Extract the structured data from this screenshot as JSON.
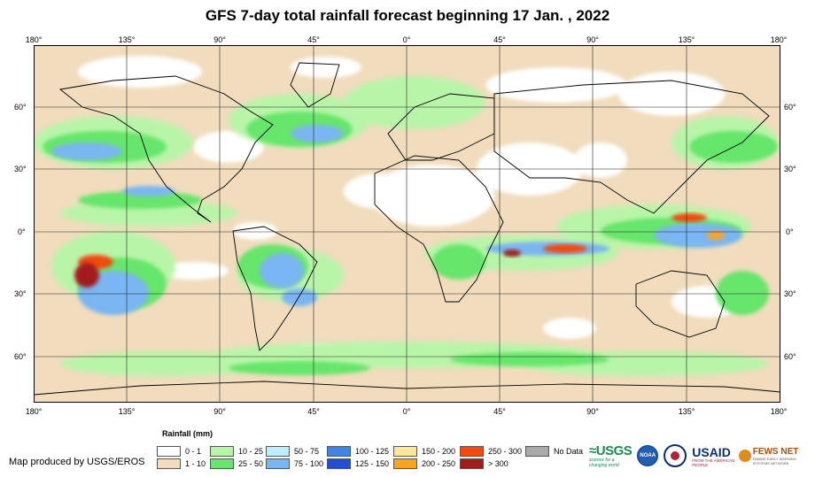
{
  "title": "GFS 7-day total rainfall forecast beginning 17 Jan. , 2022",
  "axes": {
    "longitudes": [
      "180°",
      "135°",
      "90°",
      "45°",
      "0°",
      "45°",
      "90°",
      "135°",
      "180°"
    ],
    "latitudes": [
      "60°",
      "30°",
      "0°",
      "30°",
      "60°"
    ]
  },
  "legend": {
    "title": "Rainfall (mm)",
    "items": [
      {
        "label": "0 - 1",
        "color": "#ffffff"
      },
      {
        "label": "1 - 10",
        "color": "#f1dcbd"
      },
      {
        "label": "10 - 25",
        "color": "#b8f5a8"
      },
      {
        "label": "25 - 50",
        "color": "#66e66a"
      },
      {
        "label": "50 - 75",
        "color": "#bdeefb"
      },
      {
        "label": "75 - 100",
        "color": "#7ab6f1"
      },
      {
        "label": "100 - 125",
        "color": "#3d86e6"
      },
      {
        "label": "125 - 150",
        "color": "#1f4fd6"
      },
      {
        "label": "150 - 200",
        "color": "#ffe79a"
      },
      {
        "label": "200 - 250",
        "color": "#ffa31a"
      },
      {
        "label": "250 - 300",
        "color": "#f24a10"
      },
      {
        "label": "> 300",
        "color": "#a31c1c"
      },
      {
        "label": "No Data",
        "color": "#a9a9a9"
      }
    ]
  },
  "credit": "Map produced by USGS/EROS",
  "logos": {
    "usgs": "≈USGS",
    "usgs_tag": "science for a changing world",
    "noaa": "NOAA",
    "usaid": "USAID",
    "usaid_tag": "FROM THE AMERICAN PEOPLE",
    "fews": "FEWS NET",
    "fews_tag": "FAMINE EARLY WARNING SYSTEMS NETWORK"
  }
}
